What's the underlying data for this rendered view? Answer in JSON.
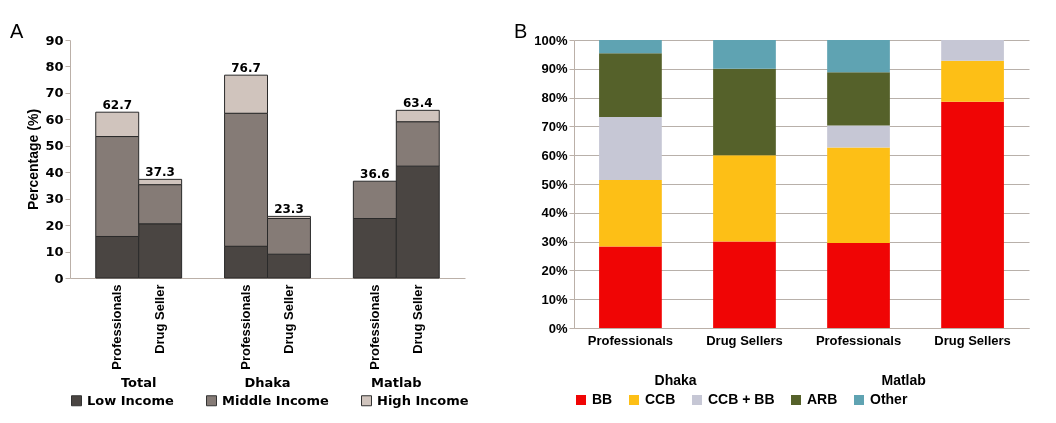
{
  "chart_data": [
    {
      "type": "bar",
      "stacked": true,
      "ylabel": "Percentage (%)",
      "categories": [
        "Professionals",
        "Drug Seller",
        "Professionals",
        "Drug Seller",
        "Professionals",
        "Drug Seller"
      ],
      "series": [
        {
          "name": "Low Income",
          "color": "#4a4542",
          "values": [
            15.7,
            20.5,
            12.0,
            9.0,
            22.5,
            42.3
          ]
        },
        {
          "name": "Middle Income",
          "color": "#857b76",
          "values": [
            37.8,
            14.8,
            50.3,
            13.5,
            14.1,
            16.8
          ]
        },
        {
          "name": "High Income",
          "color": "#d0c4bd",
          "values": [
            9.2,
            2.0,
            14.4,
            0.8,
            0,
            4.3
          ]
        }
      ],
      "totals": [
        "62.7",
        "37.3",
        "76.7",
        "23.3",
        "36.6",
        "63.4"
      ],
      "ylim": [
        0,
        90
      ],
      "yticks": [
        0,
        10,
        20,
        30,
        40,
        50,
        60,
        70,
        80,
        90
      ],
      "legend": "bottom",
      "annotations": [
        "A",
        "Total",
        "Dhaka",
        "Matlab"
      ]
    },
    {
      "type": "bar",
      "stacked": true,
      "categories": [
        "Professionals",
        "Drug Sellers",
        "Professionals",
        "Drug Sellers"
      ],
      "series": [
        {
          "name": "BB",
          "color": "#f00505",
          "values": [
            28.3,
            30.0,
            29.5,
            78.6
          ]
        },
        {
          "name": "CCB",
          "color": "#fdbf16",
          "values": [
            23.1,
            30.0,
            33.2,
            14.2
          ]
        },
        {
          "name": "CCB + BB",
          "color": "#c6c7d5",
          "values": [
            21.9,
            0,
            7.6,
            7.2
          ]
        },
        {
          "name": "ARB",
          "color": "#55612a",
          "values": [
            22.1,
            30.0,
            18.5,
            0
          ]
        },
        {
          "name": "Other",
          "color": "#5fa3b2",
          "values": [
            4.6,
            10.0,
            11.2,
            0
          ]
        }
      ],
      "ylim": [
        0,
        100
      ],
      "yticks": [
        {
          "value": 0,
          "label": "0%"
        },
        {
          "value": 10,
          "label": "10%"
        },
        {
          "value": 20,
          "label": "20%"
        },
        {
          "value": 30,
          "label": "30%"
        },
        {
          "value": 40,
          "label": "40%"
        },
        {
          "value": 50,
          "label": "50%"
        },
        {
          "value": 60,
          "label": "60%"
        },
        {
          "value": 70,
          "label": "70%"
        },
        {
          "value": 80,
          "label": "80%"
        },
        {
          "value": 90,
          "label": "90%"
        },
        {
          "value": 100,
          "label": "100%"
        }
      ],
      "grid": true,
      "legend": "bottom",
      "annotations": [
        "B",
        "Dhaka",
        "Matlab"
      ]
    }
  ]
}
